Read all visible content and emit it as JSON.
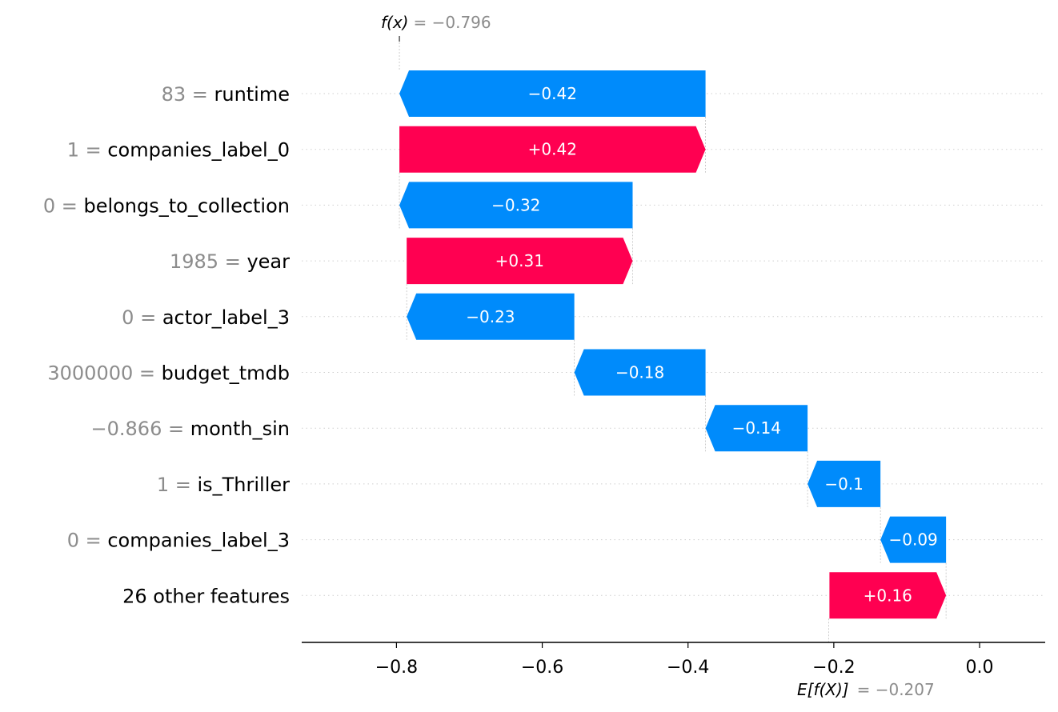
{
  "chart_data": {
    "type": "bar",
    "subtype": "waterfall",
    "base_value": -0.207,
    "final_value": -0.796,
    "annotations": {
      "fx_key": "f(x)",
      "fx_value": "= −0.796",
      "efx_key": "E[f(X)]",
      "efx_value": "= −0.207"
    },
    "rows": [
      {
        "value_label": "83",
        "feature": "runtime",
        "display": "−0.42",
        "contribution": -0.42
      },
      {
        "value_label": "1",
        "feature": "companies_label_0",
        "display": "+0.42",
        "contribution": 0.42
      },
      {
        "value_label": "0",
        "feature": "belongs_to_collection",
        "display": "−0.32",
        "contribution": -0.32
      },
      {
        "value_label": "1985",
        "feature": "year",
        "display": "+0.31",
        "contribution": 0.31
      },
      {
        "value_label": "0",
        "feature": "actor_label_3",
        "display": "−0.23",
        "contribution": -0.23
      },
      {
        "value_label": "3000000",
        "feature": "budget_tmdb",
        "display": "−0.18",
        "contribution": -0.18
      },
      {
        "value_label": "−0.866",
        "feature": "month_sin",
        "display": "−0.14",
        "contribution": -0.14
      },
      {
        "value_label": "1",
        "feature": "is_Thriller",
        "display": "−0.1",
        "contribution": -0.1
      },
      {
        "value_label": "0",
        "feature": "companies_label_3",
        "display": "−0.09",
        "contribution": -0.09
      },
      {
        "value_label": "",
        "feature": "26 other features",
        "display": "+0.16",
        "contribution": 0.16
      }
    ],
    "xticks": [
      -0.8,
      -0.6,
      -0.4,
      -0.2,
      0.0
    ],
    "xtick_labels": [
      "−0.8",
      "−0.6",
      "−0.4",
      "−0.2",
      "0.0"
    ],
    "xlim": [
      -0.93,
      0.09
    ],
    "colors": {
      "positive": "#ff0051",
      "negative": "#008bfb",
      "muted": "#8c8c8c"
    }
  }
}
